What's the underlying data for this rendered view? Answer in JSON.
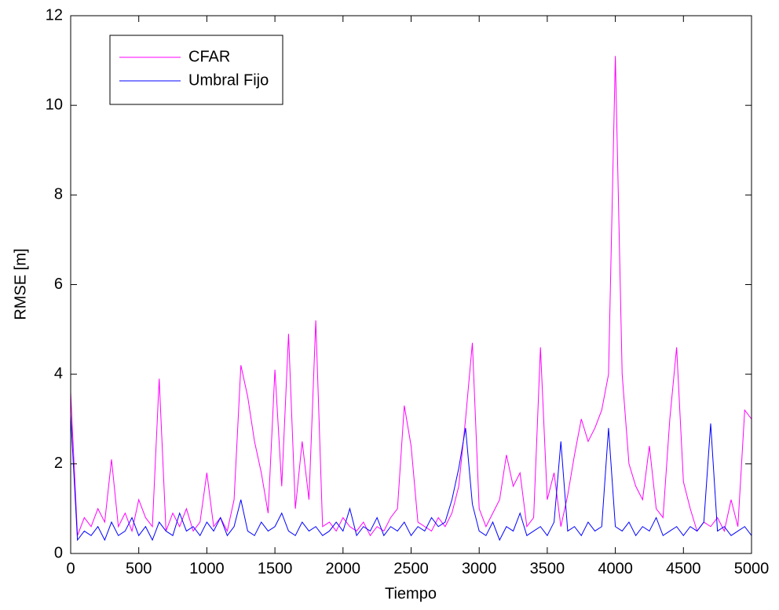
{
  "chart_data": {
    "type": "line",
    "x_label": "Tiempo",
    "y_label": "RMSE [m]",
    "x": [
      0,
      50,
      100,
      150,
      200,
      250,
      300,
      350,
      400,
      450,
      500,
      550,
      600,
      650,
      700,
      750,
      800,
      850,
      900,
      950,
      1000,
      1050,
      1100,
      1150,
      1200,
      1250,
      1300,
      1350,
      1400,
      1450,
      1500,
      1550,
      1600,
      1650,
      1700,
      1750,
      1800,
      1850,
      1900,
      1950,
      2000,
      2050,
      2100,
      2150,
      2200,
      2250,
      2300,
      2350,
      2400,
      2450,
      2500,
      2550,
      2600,
      2650,
      2700,
      2750,
      2800,
      2850,
      2900,
      2950,
      3000,
      3050,
      3100,
      3150,
      3200,
      3250,
      3300,
      3350,
      3400,
      3450,
      3500,
      3550,
      3600,
      3650,
      3700,
      3750,
      3800,
      3850,
      3900,
      3950,
      4000,
      4050,
      4100,
      4150,
      4200,
      4250,
      4300,
      4350,
      4400,
      4450,
      4500,
      4550,
      4600,
      4650,
      4700,
      4750,
      4800,
      4850,
      4900,
      4950,
      5000
    ],
    "series": [
      {
        "name": "CFAR",
        "color": "#ff00ff",
        "values": [
          3.6,
          0.4,
          0.8,
          0.6,
          1.0,
          0.7,
          2.1,
          0.6,
          0.9,
          0.5,
          1.2,
          0.8,
          0.6,
          3.9,
          0.5,
          0.9,
          0.6,
          1.0,
          0.5,
          0.7,
          1.8,
          0.6,
          0.8,
          0.5,
          1.2,
          4.2,
          3.5,
          2.5,
          1.8,
          0.9,
          4.1,
          1.5,
          4.9,
          1.0,
          2.5,
          1.2,
          5.2,
          0.6,
          0.7,
          0.5,
          0.8,
          0.6,
          0.5,
          0.7,
          0.4,
          0.6,
          0.5,
          0.8,
          1.0,
          3.3,
          2.4,
          0.7,
          0.6,
          0.5,
          0.8,
          0.6,
          0.9,
          1.5,
          3.0,
          4.7,
          1.0,
          0.6,
          0.9,
          1.2,
          2.2,
          1.5,
          1.8,
          0.6,
          0.8,
          4.6,
          1.2,
          1.8,
          0.6,
          1.3,
          2.2,
          3.0,
          2.5,
          2.8,
          3.2,
          4.0,
          11.1,
          4.0,
          2.0,
          1.5,
          1.2,
          2.4,
          1.0,
          0.8,
          3.0,
          4.6,
          1.6,
          1.0,
          0.5,
          0.7,
          0.6,
          0.8,
          0.5,
          1.2,
          0.6,
          3.2,
          3.0
        ]
      },
      {
        "name": "Umbral Fijo",
        "color": "#0000ff",
        "values": [
          3.1,
          0.3,
          0.5,
          0.4,
          0.6,
          0.3,
          0.7,
          0.4,
          0.5,
          0.8,
          0.4,
          0.6,
          0.3,
          0.7,
          0.5,
          0.4,
          0.9,
          0.5,
          0.6,
          0.4,
          0.7,
          0.5,
          0.8,
          0.4,
          0.6,
          1.2,
          0.5,
          0.4,
          0.7,
          0.5,
          0.6,
          0.9,
          0.5,
          0.4,
          0.7,
          0.5,
          0.6,
          0.4,
          0.5,
          0.7,
          0.5,
          1.0,
          0.4,
          0.6,
          0.5,
          0.8,
          0.4,
          0.6,
          0.5,
          0.7,
          0.4,
          0.6,
          0.5,
          0.8,
          0.6,
          0.7,
          1.2,
          1.9,
          2.8,
          1.1,
          0.5,
          0.4,
          0.7,
          0.3,
          0.6,
          0.5,
          0.9,
          0.4,
          0.5,
          0.6,
          0.4,
          0.7,
          2.5,
          0.5,
          0.6,
          0.4,
          0.7,
          0.5,
          0.6,
          2.8,
          0.6,
          0.5,
          0.7,
          0.4,
          0.6,
          0.5,
          0.8,
          0.4,
          0.5,
          0.6,
          0.4,
          0.6,
          0.5,
          0.7,
          2.9,
          0.5,
          0.6,
          0.4,
          0.5,
          0.6,
          0.4
        ]
      }
    ],
    "xlim": [
      0,
      5000
    ],
    "xticks": [
      0,
      500,
      1000,
      1500,
      2000,
      2500,
      3000,
      3500,
      4000,
      4500,
      5000
    ],
    "ylim": [
      0,
      12
    ],
    "yticks": [
      0,
      2,
      4,
      6,
      8,
      10,
      12
    ],
    "grid": false,
    "legend": "upper left"
  }
}
